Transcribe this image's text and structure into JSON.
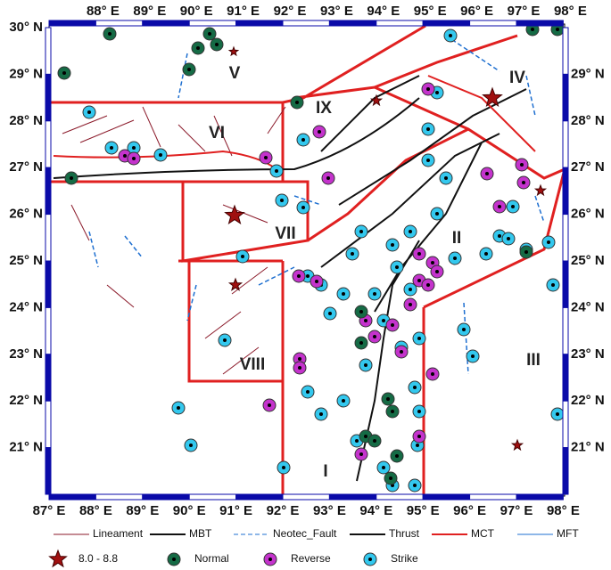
{
  "map": {
    "bottom_labels": [
      "87° E",
      "88° E",
      "89° E",
      "90° E",
      "91° E",
      "92° E",
      "93° E",
      "94° E",
      "95° E",
      "96° E",
      "97° E",
      "98° E"
    ],
    "top_labels": [
      "88° E",
      "89° E",
      "90° E",
      "91° E",
      "92° E",
      "93° E",
      "94° E",
      "95° E",
      "96° E",
      "97° E",
      "98° E"
    ],
    "left_labels": [
      "30° N",
      "29° N",
      "28° N",
      "27° N",
      "26° N",
      "25° N",
      "24° N",
      "23° N",
      "22° N",
      "21° N"
    ],
    "right_labels": [
      "29° N",
      "28° N",
      "27° N",
      "26° N",
      "25° N",
      "24° N",
      "23° N",
      "22° N",
      "21° N"
    ],
    "zones": [
      "I",
      "II",
      "III",
      "IV",
      "V",
      "VI",
      "VII",
      "VIII",
      "IX"
    ]
  },
  "legend": {
    "lines": [
      "Lineament",
      "MBT",
      "Neotec_Fault",
      "Thrust",
      "MCT",
      "MFT"
    ],
    "markers": [
      "8.0 - 8.8",
      "Normal",
      "Reverse",
      "Strike"
    ]
  }
}
